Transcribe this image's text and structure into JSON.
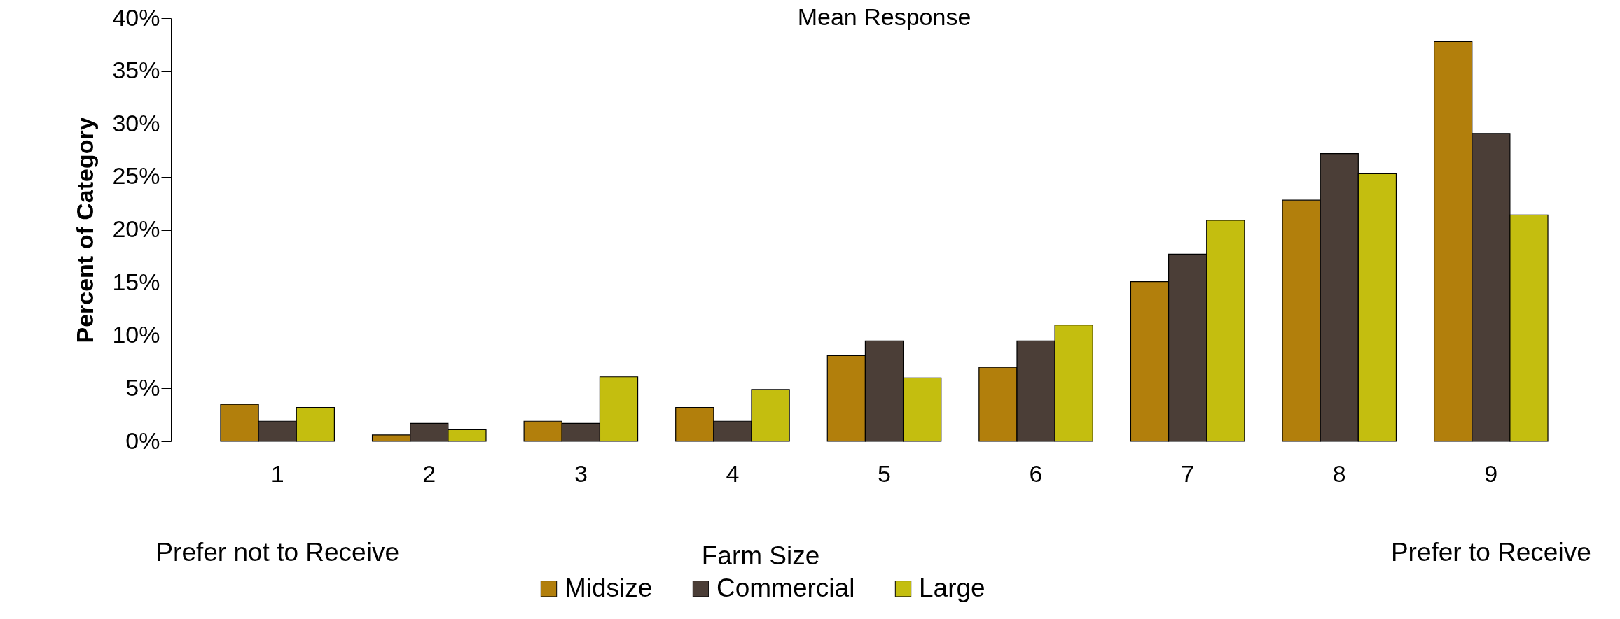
{
  "chart_data": {
    "type": "bar",
    "title": "Mean Response",
    "ylabel": "Percent of Category",
    "legend_title": "Farm Size",
    "legend": "bottom",
    "categories": [
      "1",
      "2",
      "3",
      "4",
      "5",
      "6",
      "7",
      "8",
      "9"
    ],
    "series": [
      {
        "name": "Midsize",
        "color": "#b27f0c",
        "values": [
          3.5,
          0.6,
          1.9,
          3.2,
          8.1,
          7.0,
          15.1,
          22.8,
          37.8
        ]
      },
      {
        "name": "Commercial",
        "color": "#4b3e37",
        "values": [
          1.9,
          1.7,
          1.7,
          1.9,
          9.5,
          9.5,
          17.7,
          27.2,
          29.1
        ]
      },
      {
        "name": "Large",
        "color": "#c4be0f",
        "values": [
          3.2,
          1.1,
          6.1,
          4.9,
          6.0,
          11.0,
          20.9,
          25.3,
          21.4
        ]
      }
    ],
    "ylim": [
      0,
      40
    ],
    "yticks": [
      {
        "value": 0,
        "label": "0%"
      },
      {
        "value": 5,
        "label": "5%"
      },
      {
        "value": 10,
        "label": "10%"
      },
      {
        "value": 15,
        "label": "15%"
      },
      {
        "value": 20,
        "label": "20%"
      },
      {
        "value": 25,
        "label": "25%"
      },
      {
        "value": 30,
        "label": "30%"
      },
      {
        "value": 35,
        "label": "35%"
      },
      {
        "value": 40,
        "label": "40%"
      }
    ],
    "annotations": [
      "Prefer not to Receive",
      "Prefer to Receive"
    ]
  }
}
